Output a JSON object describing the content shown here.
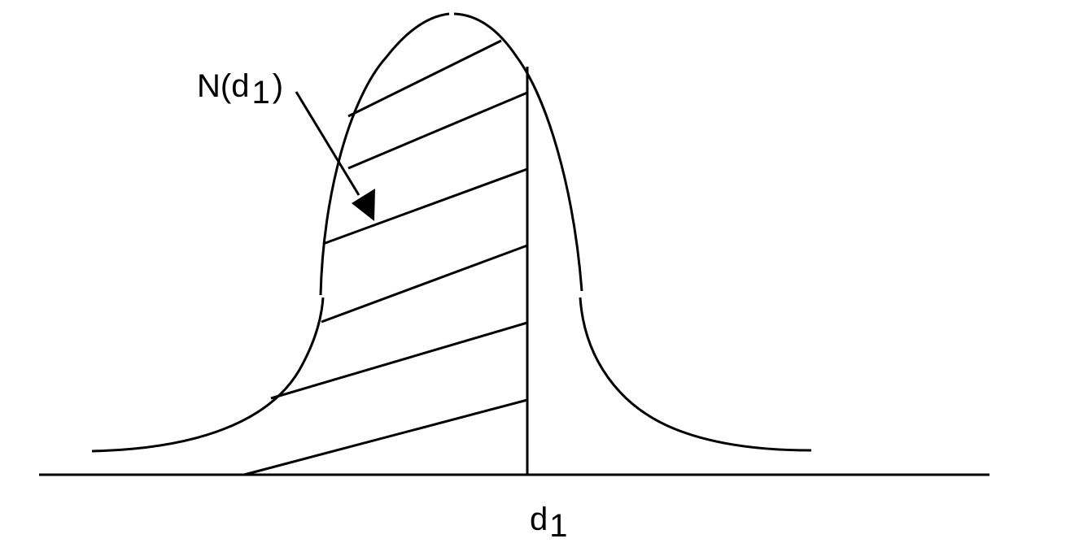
{
  "diagram": {
    "curve_label": {
      "prefix": "N(d",
      "subscript": "1",
      "suffix": ")"
    },
    "axis_label": {
      "base": "d",
      "subscript": "1"
    },
    "colors": {
      "line": "#000000",
      "background": "#ffffff"
    }
  }
}
